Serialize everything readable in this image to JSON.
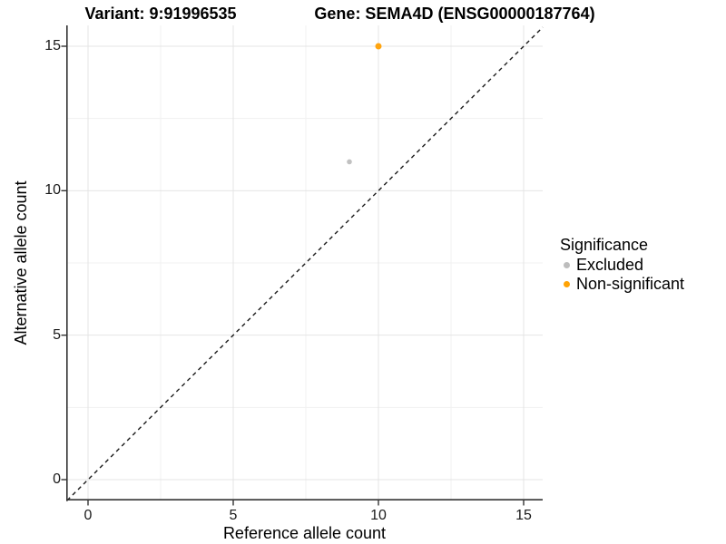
{
  "titles": {
    "variant": "Variant: 9:91996535",
    "gene": "Gene: SEMA4D (ENSG00000187764)"
  },
  "chart_data": {
    "type": "scatter",
    "title": "Variant: 9:91996535 | Gene: SEMA4D (ENSG00000187764)",
    "xlabel": "Reference allele count",
    "ylabel": "Alternative allele count",
    "xlim": [
      -0.75,
      15.66
    ],
    "ylim": [
      -0.72,
      15.72
    ],
    "x_ticks": [
      0,
      5,
      10,
      15
    ],
    "y_ticks": [
      0,
      5,
      10,
      15
    ],
    "x_minor_ticks": [
      2.5,
      7.5,
      12.5
    ],
    "y_minor_ticks": [
      2.5,
      7.5,
      12.5
    ],
    "grid": "major+minor",
    "background": "#ffffff",
    "identity_line": {
      "type": "y=x",
      "style": "dashed",
      "color": "#1a1a1a"
    },
    "points": [
      {
        "x": 9,
        "y": 11,
        "significance": "Excluded",
        "color": "#c1c1c1",
        "radius": 2.8
      },
      {
        "x": 10,
        "y": 15,
        "significance": "Non-significant",
        "color": "#ffa40f",
        "radius": 3.5
      }
    ],
    "legend": {
      "title": "Significance",
      "position": "right",
      "entries": [
        {
          "label": "Excluded",
          "color": "#bdbdbd"
        },
        {
          "label": "Non-significant",
          "color": "#ffa305"
        }
      ]
    }
  }
}
